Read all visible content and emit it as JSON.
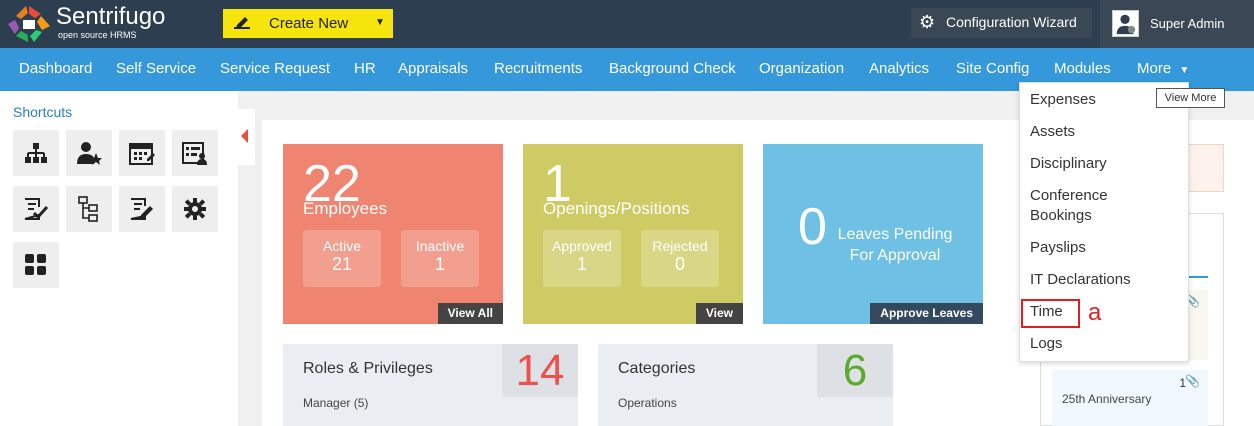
{
  "brand": {
    "name": "Sentrifugo",
    "tagline": "open source HRMS"
  },
  "topbar": {
    "create_label": "Create New",
    "config_label": "Configuration Wizard",
    "user_name": "Super Admin"
  },
  "nav": {
    "items": [
      "Dashboard",
      "Self Service",
      "Service Request",
      "HR",
      "Appraisals",
      "Recruitments",
      "Background Check",
      "Organization",
      "Analytics",
      "Site Config",
      "Modules",
      "More"
    ],
    "tooltip": "View More"
  },
  "sidebar": {
    "title": "Shortcuts",
    "icons": [
      "org-chart-icon",
      "employee-star-icon",
      "calendar-icon",
      "id-card-icon",
      "approval-doc-icon",
      "tree-doc-icon",
      "edit-doc-icon",
      "gear-icon",
      "grid-icon"
    ]
  },
  "stats": {
    "employees": {
      "count": "22",
      "label": "Employees",
      "active_label": "Active",
      "active": "21",
      "inactive_label": "Inactive",
      "inactive": "1",
      "link": "View All",
      "color": "#ef8471"
    },
    "openings": {
      "count": "1",
      "label": "Openings/Positions",
      "approved_label": "Approved",
      "approved": "1",
      "rejected_label": "Rejected",
      "rejected": "0",
      "link": "View",
      "color": "#cfcb64"
    },
    "leaves": {
      "count": "0",
      "label_line1": "Leaves Pending",
      "label_line2": "For Approval",
      "link": "Approve Leaves",
      "color": "#6ec0e5"
    }
  },
  "cards": {
    "roles": {
      "title": "Roles & Privileges",
      "count": "14",
      "sub": "Manager (5)",
      "count_color": "#f0504a"
    },
    "categories": {
      "title": "Categories",
      "count": "6",
      "sub": "Operations",
      "count_color": "#5aab2c"
    }
  },
  "dropdown": {
    "items": [
      "Expenses",
      "Assets",
      "Disciplinary",
      "Conference",
      "Bookings",
      "Payslips",
      "IT Declarations",
      "Time",
      "Logs"
    ]
  },
  "annotation": {
    "label": "a"
  },
  "right_panel": {
    "anniversary_text": "25th Anniversary",
    "count": "1"
  }
}
